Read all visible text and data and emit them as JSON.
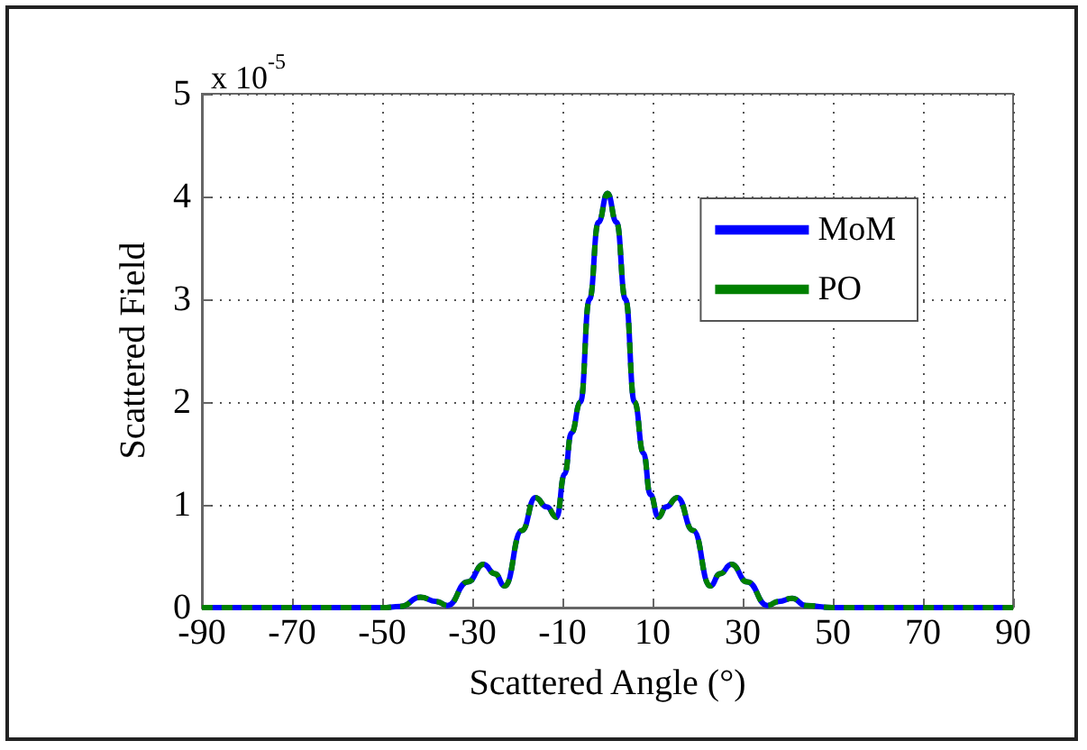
{
  "chart_data": {
    "type": "line",
    "xlabel": "Scattered Angle (°)",
    "ylabel": "Scattered Field",
    "annotations": [
      "x 10$^{-5}$"
    ],
    "x": [
      -90,
      -50,
      -46,
      -41.5,
      -38,
      -35.5,
      -31,
      -27.5,
      -25,
      -22.8,
      -19,
      -16,
      -13.5,
      -11.3,
      -9.5,
      -8,
      -6,
      -4,
      -2,
      0,
      2,
      4,
      6,
      8,
      9.5,
      11.3,
      13,
      15.5,
      19,
      22.8,
      25,
      27.5,
      31,
      35.5,
      38,
      41,
      44,
      50,
      90
    ],
    "series": [
      {
        "name": "MoM",
        "color": "#0000ff",
        "line_style": "solid",
        "values": [
          0,
          0,
          0.01,
          0.1,
          0.06,
          0.02,
          0.25,
          0.42,
          0.33,
          0.21,
          0.75,
          1.07,
          0.98,
          0.88,
          1.3,
          1.7,
          2.0,
          3.0,
          3.75,
          4.03,
          3.75,
          3.0,
          2.0,
          1.5,
          1.1,
          0.88,
          0.98,
          1.07,
          0.75,
          0.21,
          0.33,
          0.42,
          0.25,
          0.02,
          0.06,
          0.09,
          0.02,
          0,
          0
        ]
      },
      {
        "name": "PO",
        "color": "#008000",
        "line_style": "dashed",
        "values": [
          0,
          0,
          0.01,
          0.1,
          0.06,
          0.02,
          0.25,
          0.42,
          0.33,
          0.21,
          0.75,
          1.07,
          0.98,
          0.88,
          1.3,
          1.7,
          2.0,
          3.0,
          3.75,
          4.03,
          3.75,
          3.0,
          2.0,
          1.5,
          1.1,
          0.88,
          0.98,
          1.07,
          0.75,
          0.21,
          0.33,
          0.42,
          0.25,
          0.02,
          0.06,
          0.09,
          0.02,
          0,
          0
        ]
      }
    ],
    "xlim": [
      -90,
      90
    ],
    "xticks": [
      -90,
      -70,
      -50,
      -30,
      -10,
      10,
      30,
      50,
      70,
      90
    ],
    "ylim": [
      0,
      5
    ],
    "yticks": [
      0,
      1,
      2,
      3,
      4,
      5
    ],
    "grid": true,
    "legend": "top right",
    "marker": "none"
  }
}
